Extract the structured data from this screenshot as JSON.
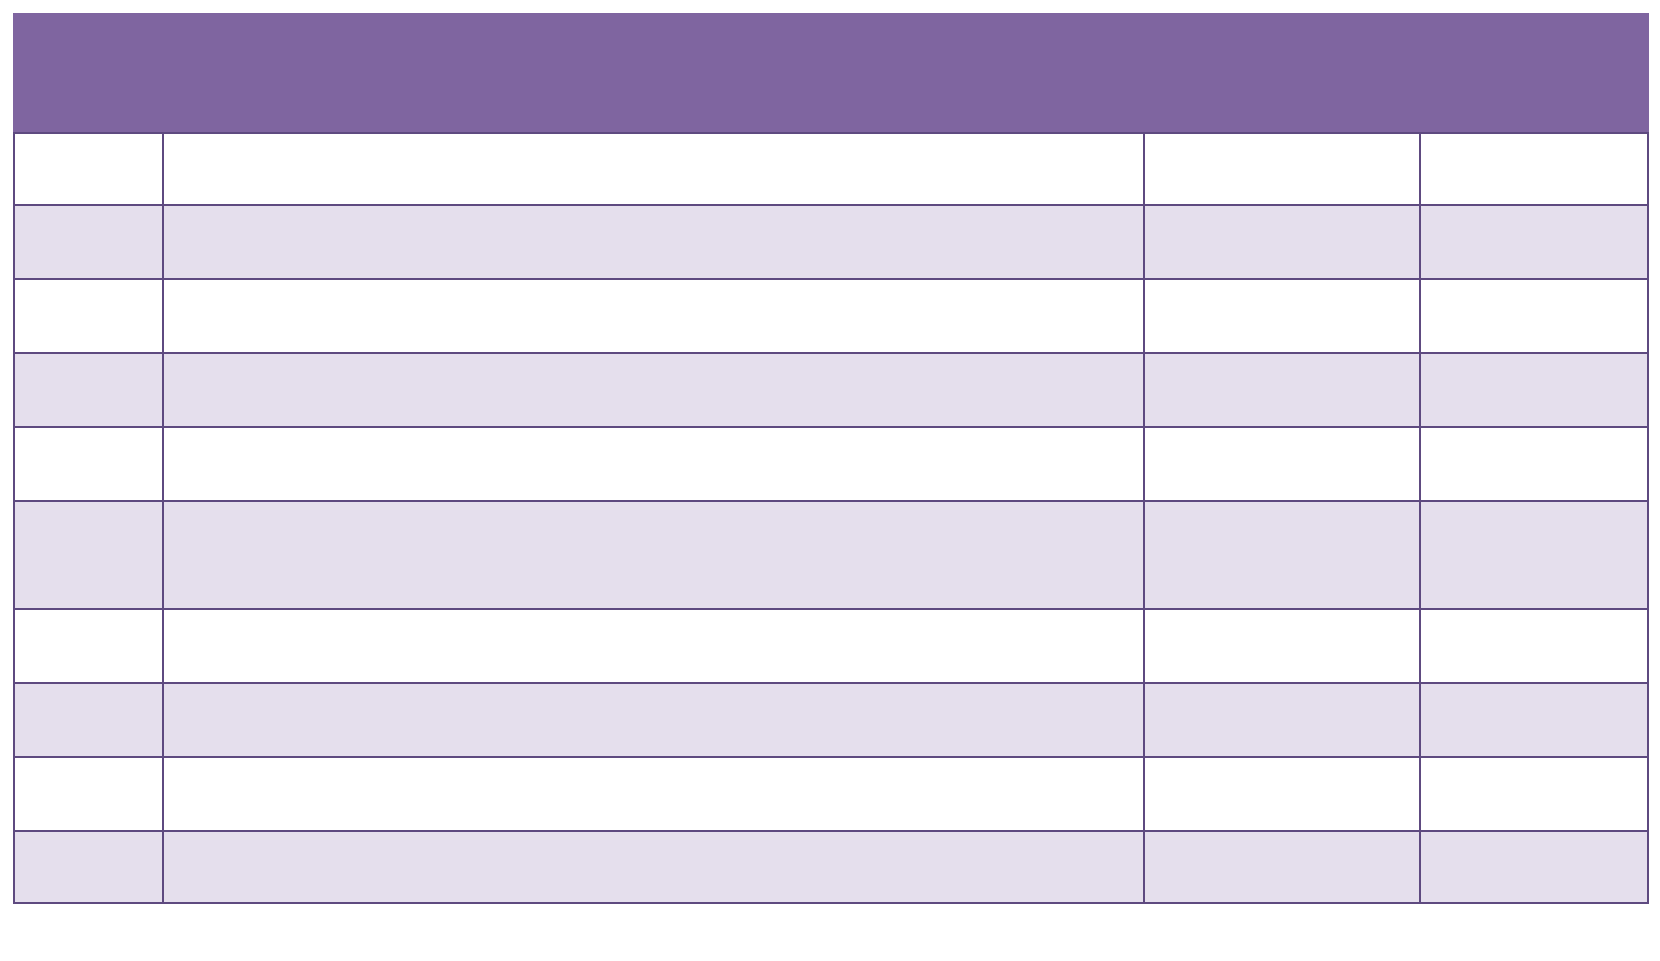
{
  "colors": {
    "header_bg": "#7f65a0",
    "border": "#5e4a80",
    "row_alt_bg": "#e5dfed",
    "row_bg": "#ffffff"
  },
  "table": {
    "header": "",
    "rows": [
      [
        "",
        "",
        "",
        ""
      ],
      [
        "",
        "",
        "",
        ""
      ],
      [
        "",
        "",
        "",
        ""
      ],
      [
        "",
        "",
        "",
        ""
      ],
      [
        "",
        "",
        "",
        ""
      ],
      [
        "",
        "",
        "",
        ""
      ],
      [
        "",
        "",
        "",
        ""
      ],
      [
        "",
        "",
        "",
        ""
      ],
      [
        "",
        "",
        "",
        ""
      ],
      [
        "",
        "",
        "",
        ""
      ]
    ]
  }
}
